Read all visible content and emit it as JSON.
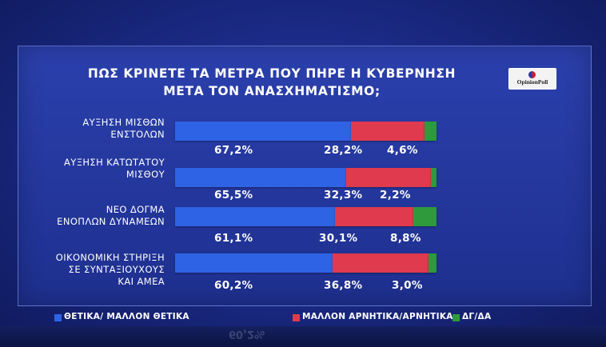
{
  "logo": {
    "text": "OpinionPoll"
  },
  "colors": {
    "positive": "#2f63e6",
    "negative": "#e03a4e",
    "dk": "#2e9a3c"
  },
  "chart_data": {
    "type": "bar",
    "orientation": "horizontal",
    "stacked": true,
    "title": "ΠΩΣ ΚΡΙΝΕΤΕ ΤΑ ΜΕΤΡΑ ΠΟΥ ΠΗΡΕ Η ΚΥΒΕΡΝΗΣΗ ΜΕΤΑ ΤΟΝ ΑΝΑΣΧΗΜΑΤΙΣΜΟ;",
    "title_lines": [
      "ΠΩΣ ΚΡΙΝΕΤΕ ΤΑ ΜΕΤΡΑ ΠΟΥ ΠΗΡΕ Η ΚΥΒΕΡΝΗΣΗ",
      "ΜΕΤΑ ΤΟΝ ΑΝΑΣΧΗΜΑΤΙΣΜΟ;"
    ],
    "categories": [
      [
        "ΑΥΞΗΣΗ ΜΙΣΘΩΝ",
        "ΕΝΣΤΟΛΩΝ"
      ],
      [
        "ΑΥΞΗΣΗ ΚΑΤΩΤΑΤΟΥ",
        "ΜΙΣΘΟΥ"
      ],
      [
        "ΝΕΟ ΔΟΓΜΑ",
        "ΕΝΟΠΛΩΝ ΔΥΝΑΜΕΩΝ"
      ],
      [
        "ΟΙΚΟΝΟΜΙΚΗ ΣΤΗΡΙΞΗ",
        "ΣΕ ΣΥΝΤΑΞΙΟΥΧΟΥΣ",
        "ΚΑΙ ΑΜΕΑ"
      ]
    ],
    "series": [
      {
        "name": "ΘΕΤΙΚΑ/ ΜΑΛΛΟΝ ΘΕΤΙΚΑ",
        "values": [
          67.2,
          65.5,
          61.1,
          60.2
        ],
        "labels": [
          "67,2%",
          "65,5%",
          "61,1%",
          "60,2%"
        ]
      },
      {
        "name": "ΜΑΛΛΟΝ ΑΡΝΗΤΙΚΑ/ΑΡΝΗΤΙΚΑ",
        "values": [
          28.2,
          32.3,
          30.1,
          36.8
        ],
        "labels": [
          "28,2%",
          "32,3%",
          "30,1%",
          "36,8%"
        ]
      },
      {
        "name": "ΔΓ/ΔΑ",
        "values": [
          4.6,
          2.2,
          8.8,
          3.0
        ],
        "labels": [
          "4,6%",
          "2,2%",
          "8,8%",
          "3,0%"
        ]
      }
    ],
    "xlim": [
      0,
      100
    ],
    "legend": "bottom",
    "grid": false
  }
}
